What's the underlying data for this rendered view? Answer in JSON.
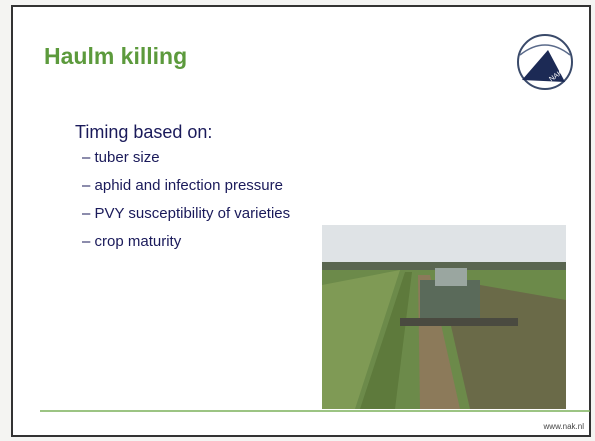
{
  "slide": {
    "title": "Haulm killing",
    "logo": "NAK",
    "heading": "Timing based on:",
    "bullets": [
      "– tuber size",
      "– aphid and infection pressure",
      "– PVY susceptibility of varieties",
      "– crop maturity"
    ],
    "footer": "www.nak.nl"
  }
}
